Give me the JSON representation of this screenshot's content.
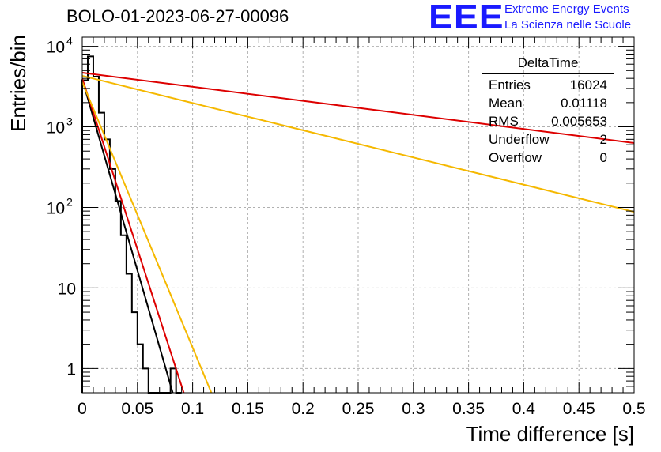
{
  "header": {
    "run_id": "BOLO-01-2023-06-27-00096"
  },
  "logo": {
    "mark": "EEE",
    "line1": "Extreme Energy Events",
    "line2": "La Scienza nelle Scuole",
    "color": "#1a1aff"
  },
  "stats_box": {
    "title": "DeltaTime",
    "rows": [
      {
        "label": "Entries",
        "value": "16024"
      },
      {
        "label": "Mean",
        "value": "0.01118"
      },
      {
        "label": "RMS",
        "value": "0.005653"
      },
      {
        "label": "Underflow",
        "value": "2"
      },
      {
        "label": "Overflow",
        "value": "0"
      }
    ]
  },
  "chart_data": {
    "type": "line",
    "xlabel": "Time difference [s]",
    "ylabel": "Entries/bin",
    "xlim": [
      0,
      0.5
    ],
    "ylim": [
      0.5,
      13000
    ],
    "yscale": "log",
    "grid": true,
    "x_ticks": [
      "0",
      "0.05",
      "0.1",
      "0.15",
      "0.2",
      "0.25",
      "0.3",
      "0.35",
      "0.4",
      "0.45",
      "0.5"
    ],
    "y_ticks": [
      {
        "value": 1,
        "label": "1"
      },
      {
        "value": 10,
        "label": "10"
      },
      {
        "value": 100,
        "label": "10",
        "exp": "2"
      },
      {
        "value": 1000,
        "label": "10",
        "exp": "3"
      },
      {
        "value": 10000,
        "label": "10",
        "exp": "4"
      }
    ],
    "histogram": {
      "color": "#000000",
      "bin_width": 0.005,
      "counts": [
        3800,
        7500,
        4200,
        1500,
        700,
        300,
        120,
        45,
        15,
        5,
        2,
        1,
        0.5,
        0.5,
        0.5,
        0.5,
        1,
        0.5
      ]
    },
    "series": [
      {
        "color": "#000000",
        "x": [
          0,
          0.082
        ],
        "y": [
          3900,
          0.5
        ]
      },
      {
        "color": "#dd0000",
        "x": [
          0,
          0.092
        ],
        "y": [
          4000,
          0.5
        ]
      },
      {
        "color": "#f5b800",
        "x": [
          0,
          0.117
        ],
        "y": [
          3600,
          0.5
        ]
      },
      {
        "color": "#dd0000",
        "x": [
          0,
          0.5
        ],
        "y": [
          4700,
          630
        ]
      },
      {
        "color": "#f5b800",
        "x": [
          0,
          0.5
        ],
        "y": [
          4300,
          88
        ]
      }
    ]
  }
}
